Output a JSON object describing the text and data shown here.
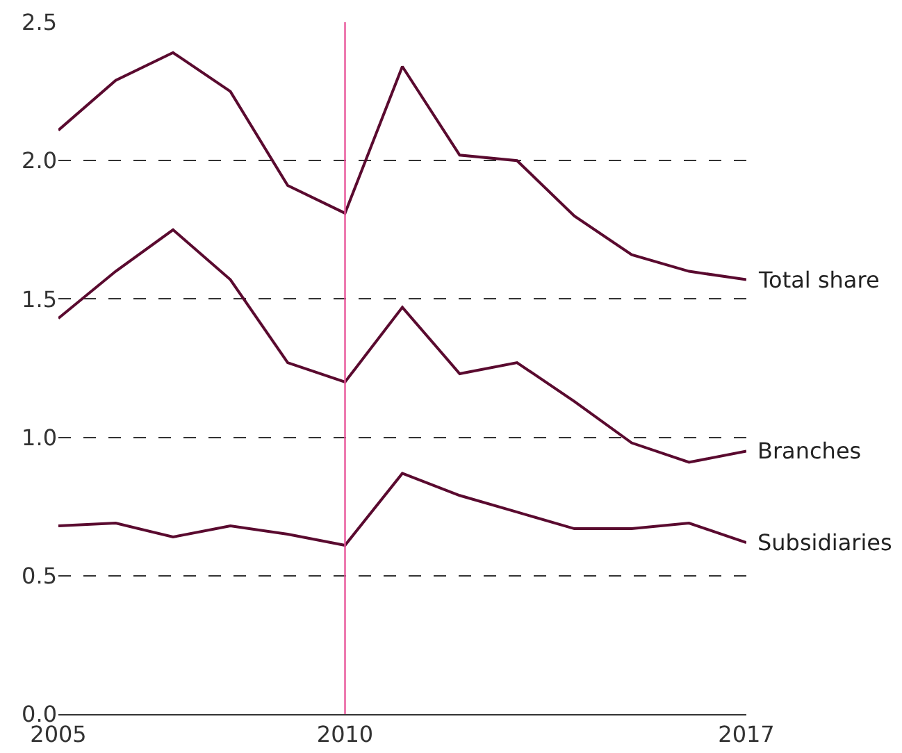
{
  "chart_data": {
    "type": "line",
    "x": [
      2005,
      2006,
      2007,
      2008,
      2009,
      2010,
      2011,
      2012,
      2013,
      2014,
      2015,
      2016,
      2017
    ],
    "series": [
      {
        "name": "Total share",
        "color": "#5a0a2f",
        "values": [
          2.11,
          2.29,
          2.39,
          2.25,
          1.91,
          1.81,
          2.34,
          2.02,
          2.0,
          1.8,
          1.66,
          1.6,
          1.57
        ]
      },
      {
        "name": "Branches",
        "color": "#5a0a2f",
        "values": [
          1.43,
          1.6,
          1.75,
          1.57,
          1.27,
          1.2,
          1.47,
          1.23,
          1.27,
          1.13,
          0.98,
          0.91,
          0.95
        ]
      },
      {
        "name": "Subsidiaries",
        "color": "#5a0a2f",
        "values": [
          0.68,
          0.69,
          0.64,
          0.68,
          0.65,
          0.61,
          0.87,
          0.79,
          0.73,
          0.67,
          0.67,
          0.69,
          0.62
        ]
      }
    ],
    "xlim": [
      2005,
      2017
    ],
    "xticks": [
      2005,
      2010,
      2017
    ],
    "ylim": [
      0,
      2.5
    ],
    "yticks": [
      {
        "value": 0,
        "label": "0.0"
      },
      0.5,
      {
        "value": 1,
        "label": "1.0"
      },
      1.5,
      {
        "value": 2,
        "label": "2.0"
      },
      2.5
    ],
    "grid": "y",
    "legend": false,
    "marker": "none",
    "line_style": "solid",
    "ref_lines": [
      {
        "axis": "x",
        "value": 2010,
        "label": null,
        "color": "#e8559a"
      }
    ]
  }
}
